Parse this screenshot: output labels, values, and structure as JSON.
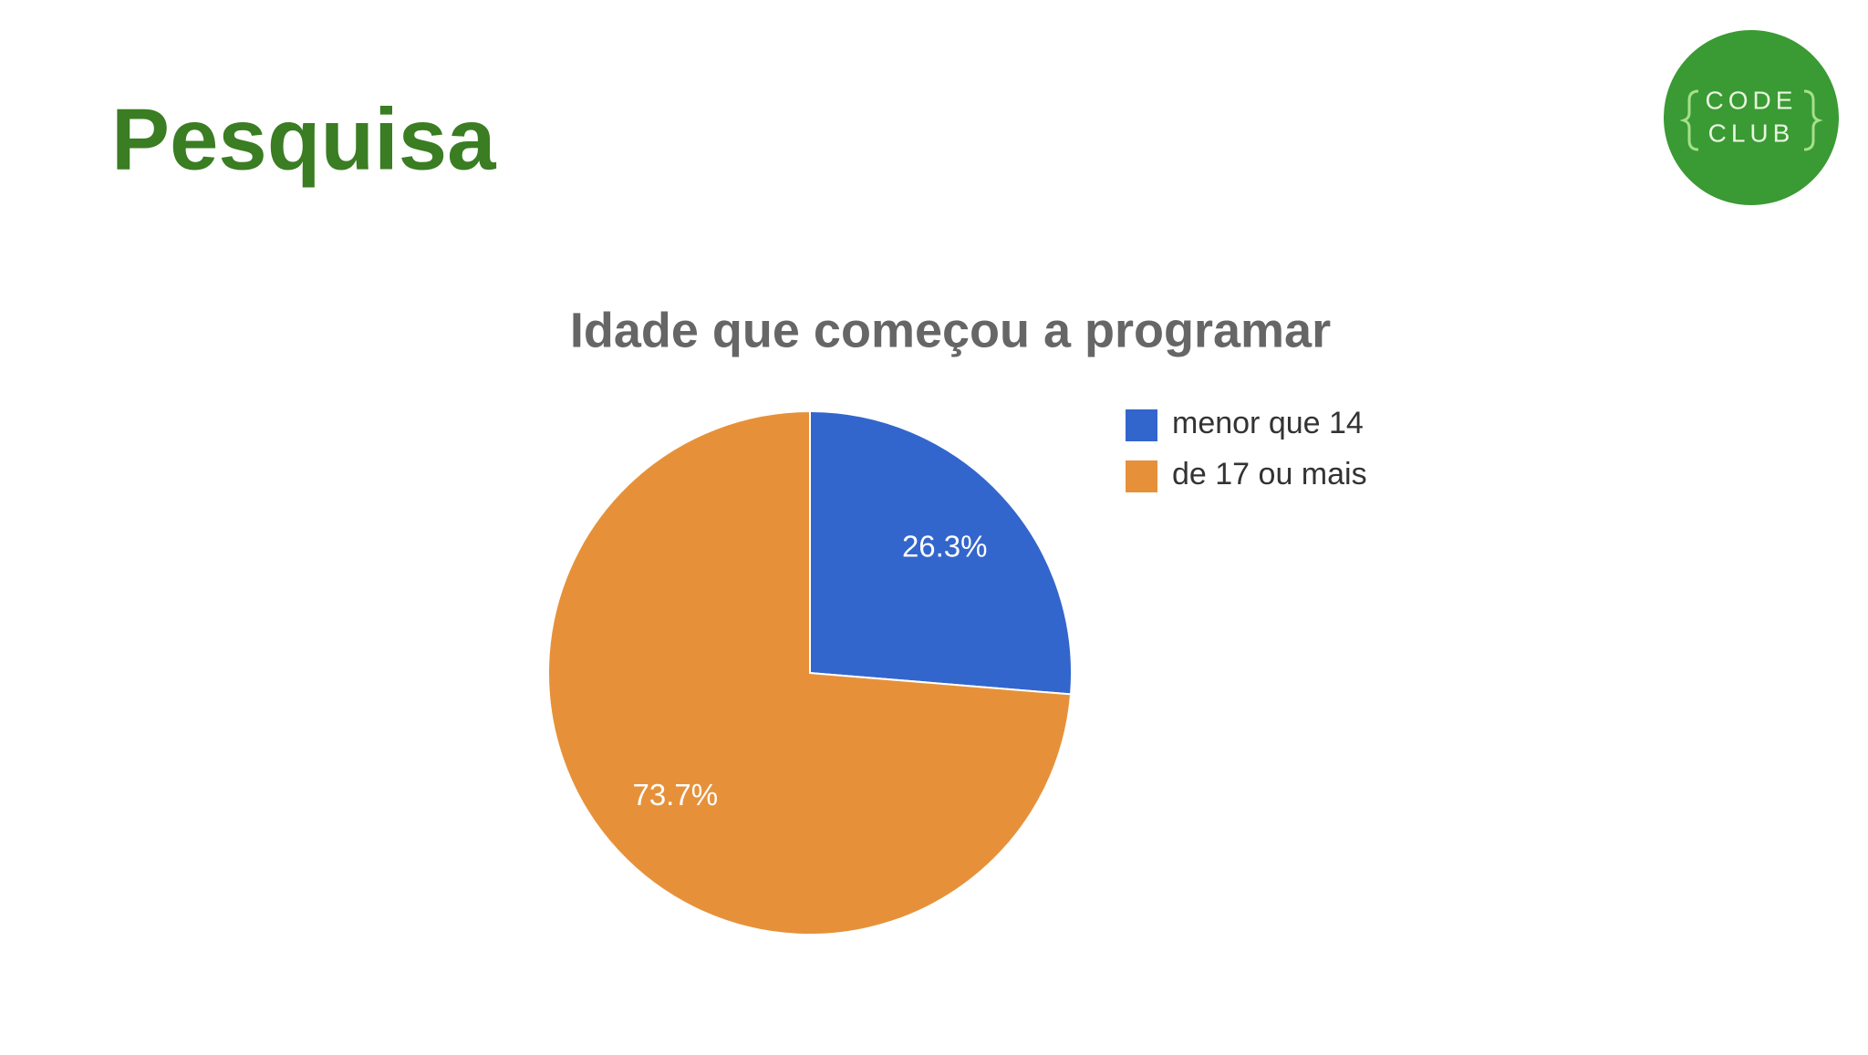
{
  "slide": {
    "title": "Pesquisa",
    "logo": [
      "CODE",
      "CLUB"
    ]
  },
  "chart_data": {
    "type": "pie",
    "title": "Idade que começou a programar",
    "categories": [
      "menor que 14",
      "de 17 ou mais"
    ],
    "values": [
      26.3,
      73.7
    ],
    "value_labels": [
      "26.3%",
      "73.7%"
    ],
    "colors": [
      "#3366cc",
      "#e6913a"
    ],
    "legend": "right"
  }
}
